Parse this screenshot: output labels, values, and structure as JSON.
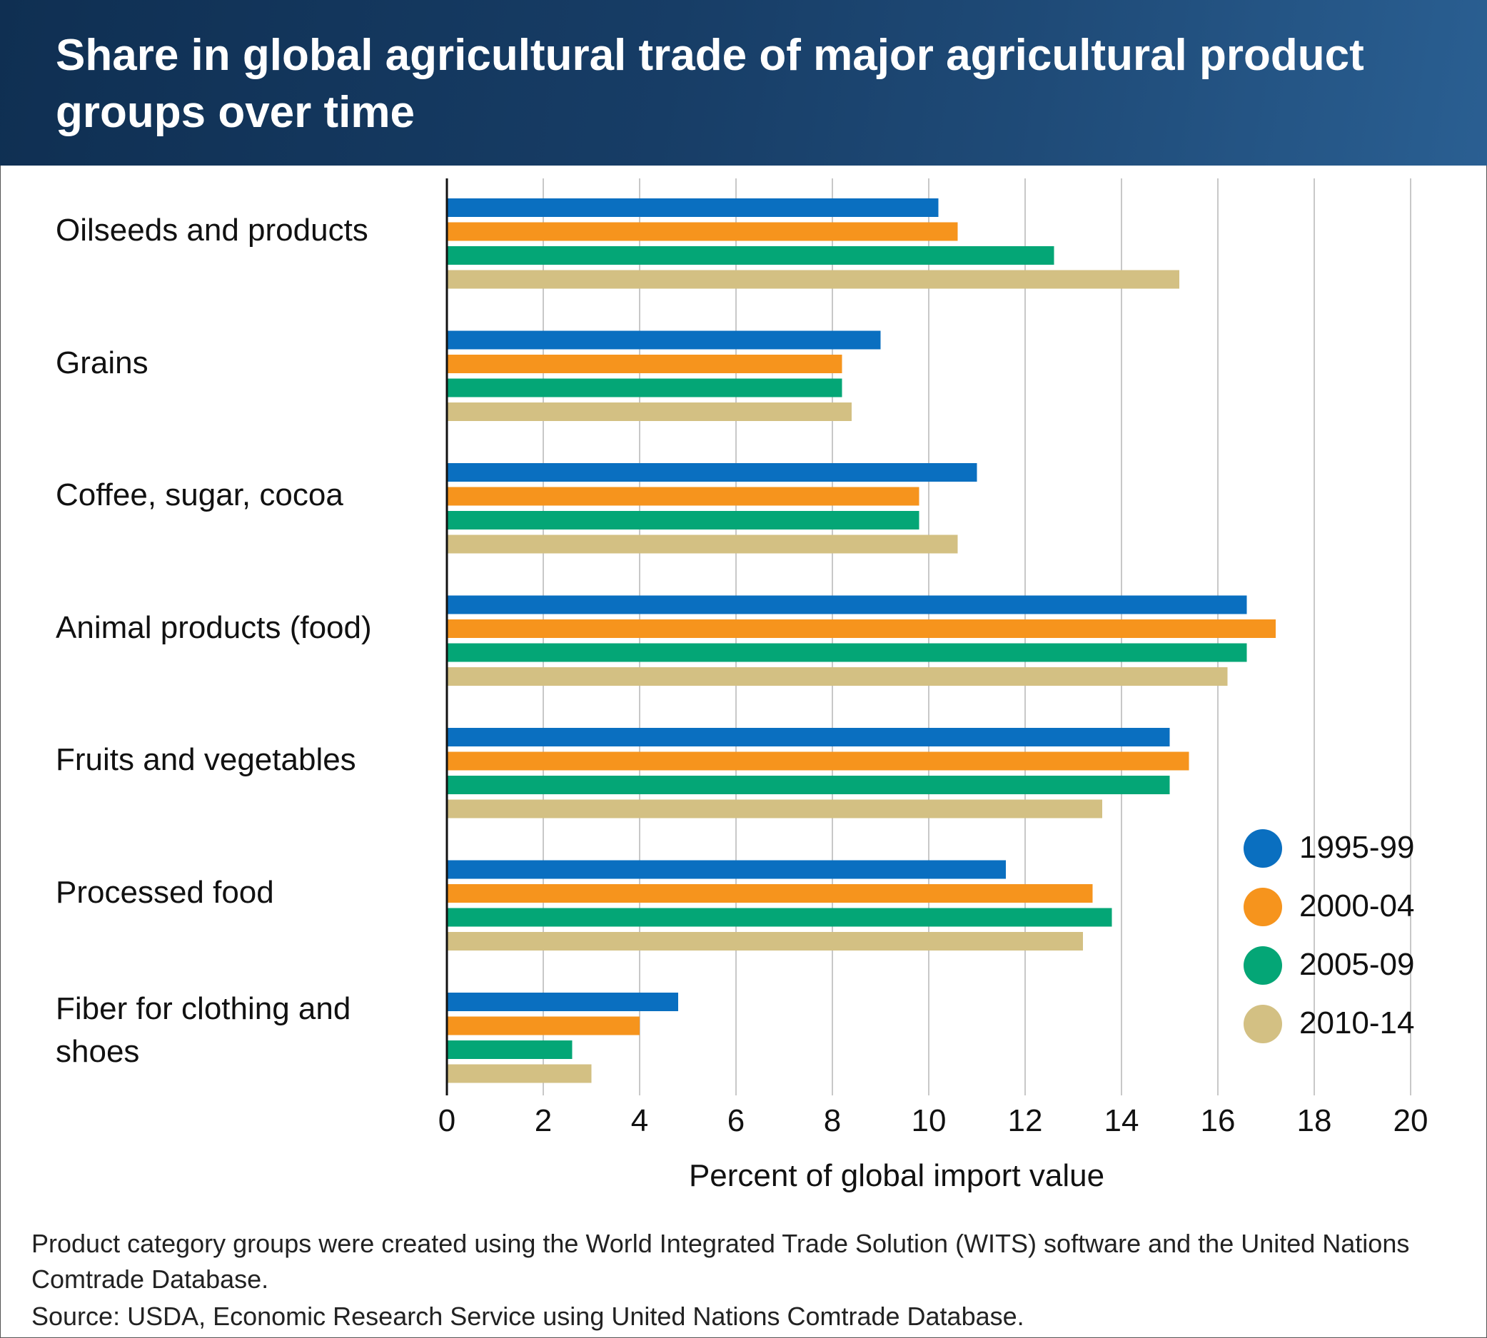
{
  "header": {
    "title": "Share in global agricultural trade of major agricultural product groups over time"
  },
  "chart_data": {
    "type": "bar",
    "orientation": "horizontal",
    "categories": [
      "Oilseeds and products",
      "Grains",
      "Coffee, sugar, cocoa",
      "Animal products (food)",
      "Fruits and vegetables",
      "Processed food",
      "Fiber for clothing and shoes"
    ],
    "series": [
      {
        "name": "1995-99",
        "color": "#0a6fc0",
        "values": [
          10.2,
          9.0,
          11.0,
          16.6,
          15.0,
          11.6,
          4.8
        ]
      },
      {
        "name": "2000-04",
        "color": "#f6941d",
        "values": [
          10.6,
          8.2,
          9.8,
          17.2,
          15.4,
          13.4,
          4.0
        ]
      },
      {
        "name": "2005-09",
        "color": "#04a676",
        "values": [
          12.6,
          8.2,
          9.8,
          16.6,
          15.0,
          13.8,
          2.6
        ]
      },
      {
        "name": "2010-14",
        "color": "#d3c083",
        "values": [
          15.2,
          8.4,
          10.6,
          16.2,
          13.6,
          13.2,
          3.0
        ]
      }
    ],
    "xlabel": "Percent of global import value",
    "xlim": [
      0,
      20
    ],
    "xticks": [
      0,
      2,
      4,
      6,
      8,
      10,
      12,
      14,
      16,
      18,
      20
    ],
    "grid": true,
    "legend_position": "bottom-right"
  },
  "footer": {
    "note": "Product category groups were created using the World Integrated Trade Solution (WITS) software and the United Nations Comtrade Database.",
    "source": "Source: USDA, Economic Research Service using United Nations Comtrade Database."
  }
}
